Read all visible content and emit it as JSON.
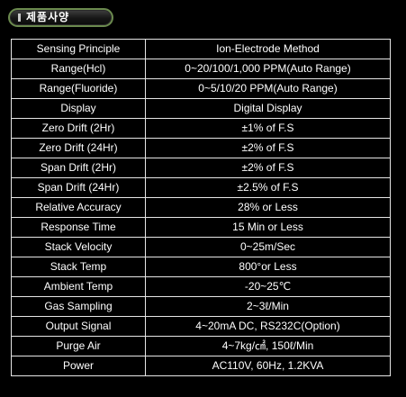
{
  "title": "제품사양",
  "specs": [
    {
      "label": "Sensing Principle",
      "value": "Ion-Electrode Method"
    },
    {
      "label": "Range(Hcl)",
      "value": "0~20/100/1,000 PPM(Auto Range)"
    },
    {
      "label": "Range(Fluoride)",
      "value": "0~5/10/20 PPM(Auto Range)"
    },
    {
      "label": "Display",
      "value": "Digital Display"
    },
    {
      "label": "Zero Drift (2Hr)",
      "value": "±1% of F.S"
    },
    {
      "label": "Zero Drift (24Hr)",
      "value": "±2% of F.S"
    },
    {
      "label": "Span Drift (2Hr)",
      "value": "±2% of F.S"
    },
    {
      "label": "Span Drift (24Hr)",
      "value": "±2.5% of F.S"
    },
    {
      "label": "Relative Accuracy",
      "value": "28% or Less"
    },
    {
      "label": "Response Time",
      "value": "15 Min or Less"
    },
    {
      "label": "Stack Velocity",
      "value": "0~25m/Sec"
    },
    {
      "label": "Stack Temp",
      "value": "800°or Less"
    },
    {
      "label": "Ambient Temp",
      "value": "-20~25℃"
    },
    {
      "label": "Gas Sampling",
      "value": "2~3ℓ/Min"
    },
    {
      "label": "Output Signal",
      "value": "4~20mA DC, RS232C(Option)"
    },
    {
      "label": "Purge Air",
      "value": "4~7kg/㎠, 150ℓ/Min"
    },
    {
      "label": "Power",
      "value": "AC110V, 60Hz, 1.2KVA"
    }
  ]
}
